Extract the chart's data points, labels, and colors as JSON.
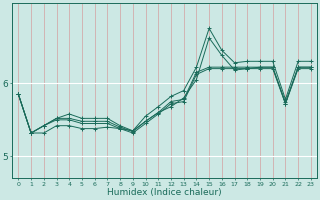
{
  "xlabel": "Humidex (Indice chaleur)",
  "bg_color": "#cce8e4",
  "vgrid_color": "#d4a0a0",
  "hgrid_color": "#ffffff",
  "line_color": "#1a6b5a",
  "x_ticks": [
    0,
    1,
    2,
    3,
    4,
    5,
    6,
    7,
    8,
    9,
    10,
    11,
    12,
    13,
    14,
    15,
    16,
    17,
    18,
    19,
    20,
    21,
    22,
    23
  ],
  "xlim": [
    -0.5,
    23.5
  ],
  "ylim": [
    4.7,
    7.1
  ],
  "yticks": [
    5,
    6
  ],
  "series": [
    [
      5.85,
      5.32,
      5.32,
      5.42,
      5.42,
      5.38,
      5.38,
      5.4,
      5.38,
      5.35,
      5.48,
      5.6,
      5.68,
      5.8,
      6.05,
      6.62,
      6.38,
      6.18,
      6.2,
      6.22,
      6.22,
      5.72,
      6.22,
      6.22
    ],
    [
      5.85,
      5.32,
      5.42,
      5.52,
      5.58,
      5.52,
      5.52,
      5.52,
      5.42,
      5.35,
      5.55,
      5.68,
      5.82,
      5.9,
      6.22,
      6.75,
      6.45,
      6.28,
      6.3,
      6.3,
      6.3,
      5.78,
      6.3,
      6.3
    ],
    [
      5.85,
      5.32,
      5.42,
      5.5,
      5.5,
      5.45,
      5.45,
      5.45,
      5.38,
      5.32,
      5.45,
      5.58,
      5.72,
      5.75,
      6.12,
      6.2,
      6.2,
      6.2,
      6.2,
      6.2,
      6.2,
      5.72,
      6.2,
      6.2
    ],
    [
      5.85,
      5.32,
      5.42,
      5.52,
      5.52,
      5.48,
      5.48,
      5.48,
      5.4,
      5.34,
      5.48,
      5.6,
      5.75,
      5.78,
      6.15,
      6.22,
      6.22,
      6.22,
      6.22,
      6.22,
      6.22,
      5.74,
      6.22,
      6.22
    ]
  ]
}
